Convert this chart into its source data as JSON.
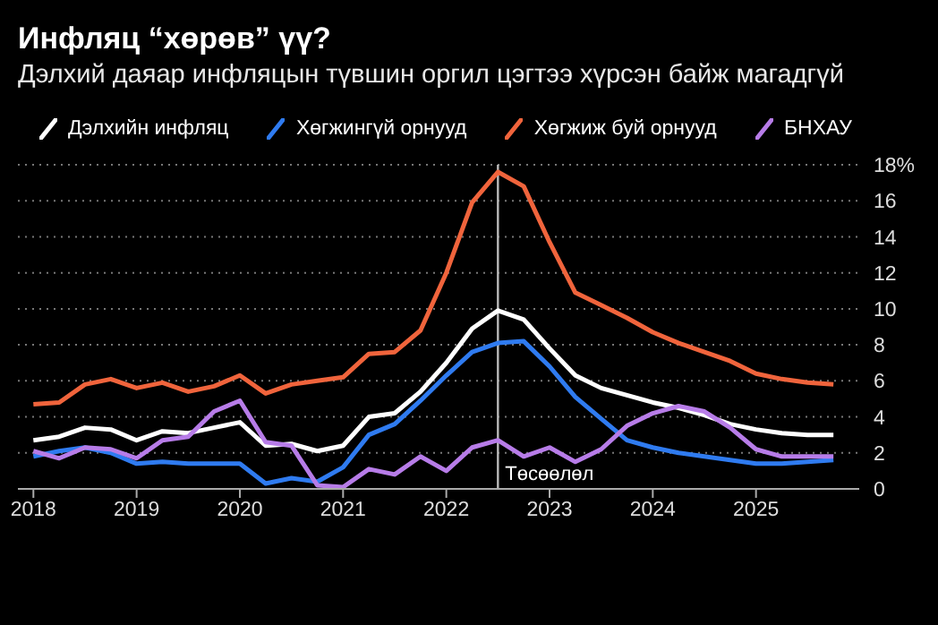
{
  "chart_data": {
    "type": "line",
    "title": "Инфляц “хөрөв” үү?",
    "subtitle": "Дэлхий даяар инфляцын түвшин оргил цэгтээ хүрсэн байж магадгүй",
    "x": [
      2018,
      2018.25,
      2018.5,
      2018.75,
      2019,
      2019.25,
      2019.5,
      2019.75,
      2020,
      2020.25,
      2020.5,
      2020.75,
      2021,
      2021.25,
      2021.5,
      2021.75,
      2022,
      2022.25,
      2022.5,
      2022.75,
      2023,
      2023.25,
      2023.5,
      2023.75,
      2024,
      2024.25,
      2024.5,
      2024.75,
      2025,
      2025.25,
      2025.5,
      2025.75
    ],
    "series": [
      {
        "name": "Дэлхийн инфляц",
        "color": "#ffffff",
        "values": [
          2.7,
          2.9,
          3.4,
          3.3,
          2.7,
          3.2,
          3.1,
          3.4,
          3.7,
          2.4,
          2.5,
          2.1,
          2.4,
          4.0,
          4.2,
          5.4,
          7.0,
          8.9,
          9.9,
          9.4,
          7.8,
          6.3,
          5.6,
          5.2,
          4.8,
          4.5,
          4.1,
          3.6,
          3.3,
          3.1,
          3.0,
          3.0
        ]
      },
      {
        "name": "Хөгжингүй орнууд",
        "color": "#2f7bf0",
        "values": [
          1.8,
          2.1,
          2.3,
          2.0,
          1.4,
          1.5,
          1.4,
          1.4,
          1.4,
          0.3,
          0.6,
          0.4,
          1.2,
          3.0,
          3.6,
          4.9,
          6.3,
          7.6,
          8.1,
          8.2,
          6.8,
          5.1,
          3.9,
          2.7,
          2.3,
          2.0,
          1.8,
          1.6,
          1.4,
          1.4,
          1.5,
          1.6
        ]
      },
      {
        "name": "Хөгжиж буй орнууд",
        "color": "#f0643c",
        "values": [
          4.7,
          4.8,
          5.8,
          6.1,
          5.6,
          5.9,
          5.4,
          5.7,
          6.3,
          5.3,
          5.8,
          6.0,
          6.2,
          7.5,
          7.6,
          8.8,
          12.0,
          15.9,
          17.6,
          16.8,
          13.7,
          10.9,
          10.2,
          9.5,
          8.7,
          8.1,
          7.6,
          7.1,
          6.4,
          6.1,
          5.9,
          5.8
        ]
      },
      {
        "name": "БНХАУ",
        "color": "#b77ce8",
        "values": [
          2.1,
          1.7,
          2.3,
          2.2,
          1.7,
          2.7,
          2.9,
          4.3,
          4.9,
          2.6,
          2.4,
          0.2,
          0.1,
          1.1,
          0.8,
          1.8,
          1.0,
          2.3,
          2.7,
          1.8,
          2.3,
          1.5,
          2.2,
          3.5,
          4.2,
          4.6,
          4.3,
          3.4,
          2.2,
          1.8,
          1.8,
          1.8
        ]
      }
    ],
    "xlim": [
      2017.85,
      2026
    ],
    "xticks": [
      2018,
      2019,
      2020,
      2021,
      2022,
      2023,
      2024,
      2025
    ],
    "ylim": [
      0,
      18
    ],
    "yticks": [
      0,
      2,
      4,
      6,
      8,
      10,
      12,
      14,
      16,
      {
        "value": 18,
        "label": "18%"
      }
    ],
    "grid": "y",
    "legend": "top",
    "ref_lines": [
      {
        "axis": "x",
        "value": 2022.5,
        "label": "Төсөөлөл",
        "color": "#bbbbbb"
      }
    ]
  }
}
